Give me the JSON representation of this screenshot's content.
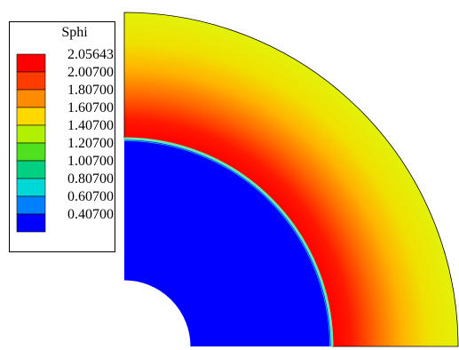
{
  "legend": {
    "title": "Sphi",
    "labels": [
      "2.05643",
      "2.00700",
      "1.80700",
      "1.60700",
      "1.40700",
      "1.20700",
      "1.00700",
      "0.80700",
      "0.60700",
      "0.40700"
    ],
    "swatch_colors": [
      "#ff0000",
      "#ff3c00",
      "#ff8c00",
      "#ffd800",
      "#b0f000",
      "#50e020",
      "#00d080",
      "#00d8d8",
      "#0080ff",
      "#0000ff"
    ]
  },
  "field": {
    "inner_region_color": "#0000ff",
    "interface_color": "#66e6b0",
    "gradient_stops": [
      {
        "offset": 0.0,
        "color": "#ff0000"
      },
      {
        "offset": 0.15,
        "color": "#ff1800"
      },
      {
        "offset": 0.35,
        "color": "#ff6a00"
      },
      {
        "offset": 0.55,
        "color": "#ffb200"
      },
      {
        "offset": 0.75,
        "color": "#f0e000"
      },
      {
        "offset": 1.0,
        "color": "#e2f20a"
      }
    ]
  }
}
